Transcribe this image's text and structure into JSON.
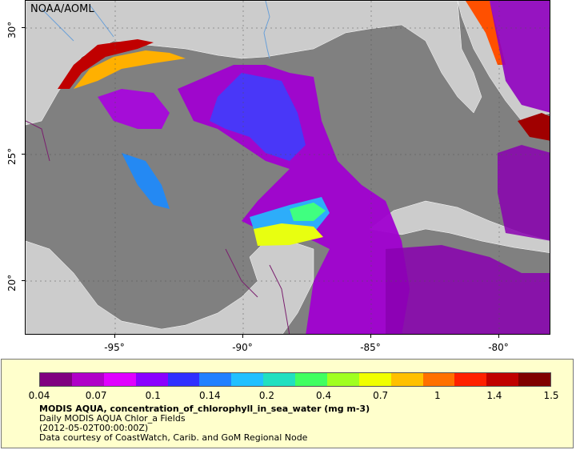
{
  "map": {
    "source_label": "NOAA/AOML",
    "lat_labels": [
      {
        "text": "30°"
      },
      {
        "text": "25°"
      },
      {
        "text": "20°"
      }
    ],
    "lon_labels": [
      {
        "text": "-95°"
      },
      {
        "text": "-90°"
      },
      {
        "text": "-85°"
      },
      {
        "text": "-80°"
      }
    ],
    "colors": {
      "land": "#cccccc",
      "no_data": "#808080",
      "borders": "#7a1f6e",
      "rivers": "#6aa0d8"
    }
  },
  "legend": {
    "ticks": [
      "0.04",
      "0.07",
      "0.1",
      "0.14",
      "0.2",
      "0.4",
      "0.7",
      "1",
      "1.4",
      "1.5"
    ],
    "title": "MODIS AQUA, concentration_of_chlorophyll_in_sea_water (mg m-3)",
    "line1": "Daily MODIS AQUA Chlor_a Fields",
    "line2": "(2012-05-02T00:00:00Z)",
    "line3": "Data courtesy of CoastWatch, Carib. and GoM Regional Node",
    "palette": [
      "#800080",
      "#b000c8",
      "#e000ff",
      "#8a00ff",
      "#3030ff",
      "#2080ff",
      "#20c0ff",
      "#20e0c0",
      "#40ff60",
      "#a0ff20",
      "#f0ff00",
      "#ffc000",
      "#ff7000",
      "#ff2000",
      "#c00000",
      "#800000"
    ]
  }
}
